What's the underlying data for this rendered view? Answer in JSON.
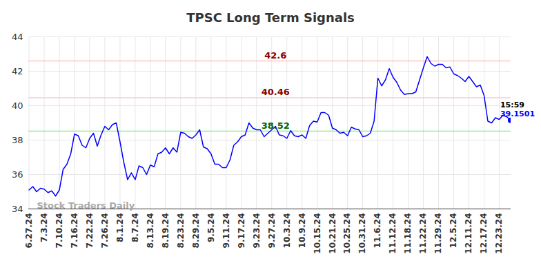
{
  "chart_data": {
    "type": "line",
    "title": "TPSC Long Term Signals",
    "categories": [
      "6.27.24",
      null,
      null,
      null,
      "7.3.24",
      null,
      null,
      null,
      "7.10.24",
      null,
      null,
      null,
      "7.16.24",
      null,
      null,
      null,
      "7.22.24",
      null,
      null,
      null,
      "7.26.24",
      null,
      null,
      null,
      "8.1.24",
      null,
      null,
      null,
      "8.7.24",
      null,
      null,
      null,
      "8.13.24",
      null,
      null,
      null,
      "8.19.24",
      null,
      null,
      null,
      "8.23.24",
      null,
      null,
      null,
      "8.29.24",
      null,
      null,
      null,
      "9.5.24",
      null,
      null,
      null,
      "9.11.24",
      null,
      null,
      null,
      "9.17.24",
      null,
      null,
      null,
      "9.23.24",
      null,
      null,
      null,
      "9.27.24",
      null,
      null,
      null,
      "10.3.24",
      null,
      null,
      null,
      "10.9.24",
      null,
      null,
      null,
      "10.15.24",
      null,
      null,
      null,
      "10.21.24",
      null,
      null,
      null,
      "10.25.24",
      null,
      null,
      null,
      "10.31.24",
      null,
      null,
      null,
      "11.6.24",
      null,
      null,
      null,
      "11.12.24",
      null,
      null,
      null,
      "11.18.24",
      null,
      null,
      null,
      "11.22.24",
      null,
      null,
      null,
      "11.29.24",
      null,
      null,
      null,
      "12.5.24",
      null,
      null,
      null,
      "12.11.24",
      null,
      null,
      null,
      "12.17.24",
      null,
      null,
      null,
      "12.23.24",
      null,
      null,
      null
    ],
    "values": [
      35.1,
      35.3,
      35.0,
      35.2,
      35.15,
      34.95,
      35.05,
      34.75,
      35.1,
      36.3,
      36.6,
      37.2,
      38.35,
      38.25,
      37.7,
      37.55,
      38.1,
      38.4,
      37.65,
      38.3,
      38.8,
      38.6,
      38.9,
      39.0,
      37.9,
      36.7,
      35.7,
      36.1,
      35.7,
      36.5,
      36.4,
      36.0,
      36.55,
      36.45,
      37.2,
      37.3,
      37.55,
      37.2,
      37.55,
      37.3,
      38.45,
      38.4,
      38.2,
      38.1,
      38.3,
      38.6,
      37.6,
      37.5,
      37.2,
      36.6,
      36.6,
      36.4,
      36.4,
      36.85,
      37.7,
      37.9,
      38.2,
      38.3,
      39.0,
      38.7,
      38.6,
      38.6,
      38.2,
      38.4,
      38.6,
      38.8,
      38.3,
      38.25,
      38.1,
      38.55,
      38.25,
      38.2,
      38.3,
      38.1,
      38.85,
      39.1,
      39.05,
      39.6,
      39.6,
      39.45,
      38.7,
      38.6,
      38.4,
      38.45,
      38.25,
      38.75,
      38.65,
      38.6,
      38.2,
      38.25,
      38.4,
      39.1,
      41.6,
      41.15,
      41.5,
      42.15,
      41.65,
      41.35,
      40.9,
      40.65,
      40.7,
      40.7,
      40.8,
      41.5,
      42.2,
      42.85,
      42.45,
      42.3,
      42.4,
      42.4,
      42.2,
      42.25,
      41.85,
      41.75,
      41.6,
      41.4,
      41.7,
      41.4,
      41.1,
      41.2,
      40.6,
      39.1,
      39.0,
      39.3,
      39.2,
      39.45,
      39.35,
      39.1501
    ],
    "color": "#0000ff",
    "ylim": [
      34,
      44
    ],
    "yticks": [
      34,
      36,
      38,
      40,
      42,
      44
    ],
    "grid": true,
    "reference_lines": [
      {
        "value": 42.6,
        "color": "#ffc8c8",
        "label_color": "#8b0000"
      },
      {
        "value": 40.46,
        "color": "#ffc8c8",
        "label_color": "#8b0000"
      },
      {
        "value": 38.52,
        "color": "#90ee90",
        "label_color": "#006400"
      }
    ],
    "annotations": {
      "watermark": "Stock Traders Daily",
      "last_time": "15:59"
    }
  }
}
